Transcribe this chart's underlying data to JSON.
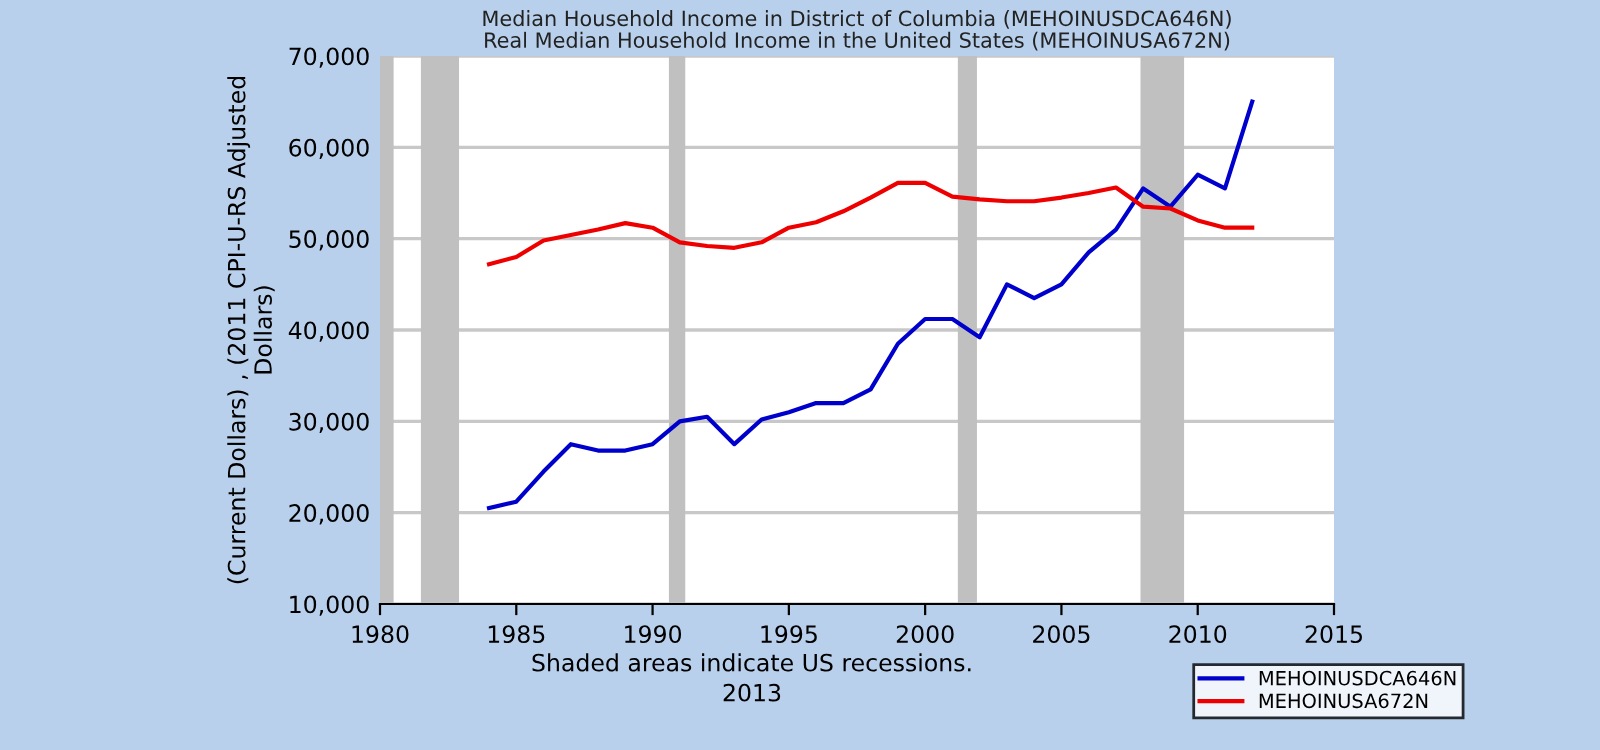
{
  "chart_data": {
    "type": "line",
    "title": "Median Household Income in District of Columbia (MEHOINUSDCA646N)\nReal Median Household Income in the United States (MEHOINUSA672N)",
    "ylabel": "(Current Dollars) , (2011 CPI-U-RS Adjusted\nDollars)",
    "x": [
      1984,
      1985,
      1986,
      1987,
      1988,
      1989,
      1990,
      1991,
      1992,
      1993,
      1994,
      1995,
      1996,
      1997,
      1998,
      1999,
      2000,
      2001,
      2002,
      2003,
      2004,
      2005,
      2006,
      2007,
      2008,
      2009,
      2010,
      2011,
      2012
    ],
    "series": [
      {
        "name": "MEHOINUSDCA646N",
        "color": "#0000cc",
        "values": [
          20500,
          21200,
          24500,
          27500,
          26800,
          26800,
          27500,
          30000,
          30500,
          27500,
          30200,
          31000,
          32000,
          32000,
          33500,
          38500,
          41200,
          41200,
          39200,
          45000,
          43500,
          45000,
          48500,
          51000,
          55500,
          53500,
          57000,
          55500,
          65000
        ]
      },
      {
        "name": "MEHOINUSA672N",
        "color": "#ee0000",
        "values": [
          47200,
          48000,
          49800,
          50400,
          51000,
          51700,
          51200,
          49600,
          49200,
          49000,
          49600,
          51200,
          51800,
          53000,
          54500,
          56100,
          56100,
          54600,
          54300,
          54100,
          54100,
          54500,
          55000,
          55600,
          53500,
          53300,
          52000,
          51200,
          51200
        ]
      }
    ],
    "xlim": [
      1980,
      2015
    ],
    "xticks": [
      1980,
      1985,
      1990,
      1995,
      2000,
      2005,
      2010,
      2015
    ],
    "ylim": [
      10000,
      70000
    ],
    "yticks": [
      {
        "value": 10000,
        "label": "10,000"
      },
      {
        "value": 20000,
        "label": "20,000"
      },
      {
        "value": 30000,
        "label": "30,000"
      },
      {
        "value": 40000,
        "label": "40,000"
      },
      {
        "value": 50000,
        "label": "50,000"
      },
      {
        "value": 60000,
        "label": "60,000"
      },
      {
        "value": 70000,
        "label": "70,000"
      }
    ],
    "bands": [
      {
        "axis": "x",
        "from": 1980.0,
        "to": 1980.5,
        "color": "#c0c0c0"
      },
      {
        "axis": "x",
        "from": 1981.5,
        "to": 1982.9,
        "color": "#c0c0c0"
      },
      {
        "axis": "x",
        "from": 1990.6,
        "to": 1991.2,
        "color": "#c0c0c0"
      },
      {
        "axis": "x",
        "from": 2001.2,
        "to": 2001.9,
        "color": "#c0c0c0"
      },
      {
        "axis": "x",
        "from": 2007.9,
        "to": 2009.5,
        "color": "#c0c0c0"
      }
    ],
    "grid": "y",
    "legend": "bottom right",
    "marker": "none",
    "line_style": "solid",
    "annotations": [
      "Shaded areas indicate US recessions.",
      "2013"
    ]
  }
}
